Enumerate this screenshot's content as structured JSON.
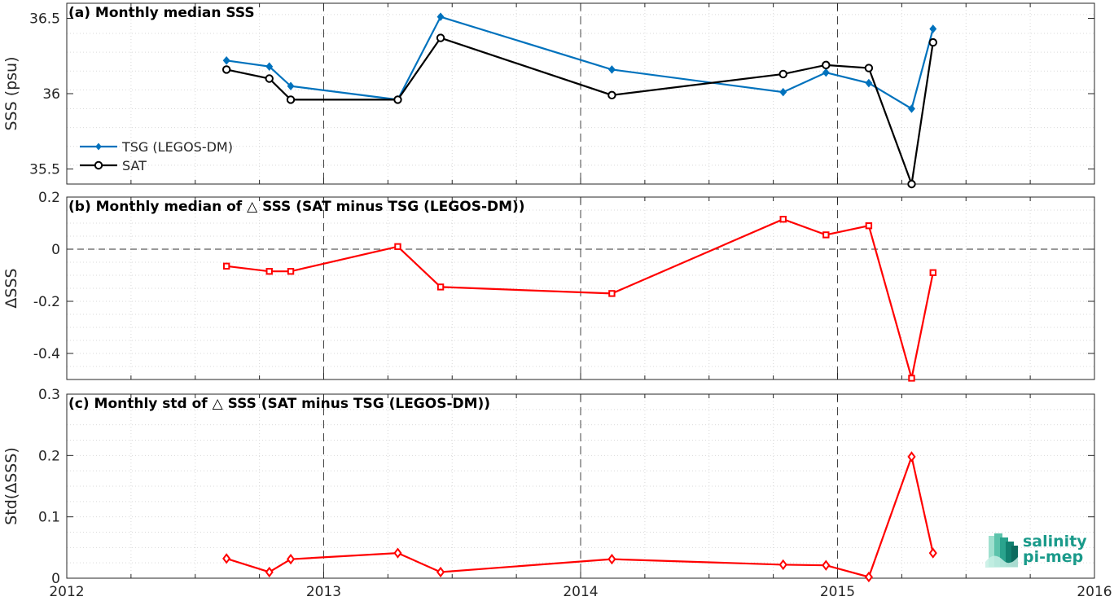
{
  "chart_data": [
    {
      "type": "line",
      "title": "(a) Monthly median SSS",
      "ylabel": "SSS (psu)",
      "xlim": [
        "2012",
        "2016"
      ],
      "ylim": [
        35.4,
        36.6
      ],
      "yticks": [
        35.5,
        36,
        36.5
      ],
      "ytick_labels": [
        "35.5",
        "36",
        "36.5"
      ],
      "grid": true,
      "legend_placement": "lower-left",
      "x": [
        "2012-08-15",
        "2012-10-15",
        "2012-11-15",
        "2013-04-15",
        "2013-06-15",
        "2014-02-15",
        "2014-10-15",
        "2014-12-15",
        "2015-02-15",
        "2015-04-15",
        "2015-05-15"
      ],
      "series": [
        {
          "name": "TSG (LEGOS-DM)",
          "color": "#0072bd",
          "marker": "diamond",
          "values": [
            36.22,
            36.18,
            36.05,
            35.96,
            36.51,
            36.16,
            36.01,
            36.14,
            36.07,
            35.9,
            36.43
          ]
        },
        {
          "name": "SAT",
          "color": "#000000",
          "marker": "circle",
          "values": [
            36.16,
            36.1,
            35.96,
            35.96,
            36.37,
            35.99,
            36.13,
            36.19,
            36.17,
            35.4,
            36.34
          ]
        }
      ]
    },
    {
      "type": "line",
      "title": "(b) Monthly median of △ SSS (SAT minus TSG (LEGOS-DM))",
      "ylabel": "ΔSSS",
      "xlim": [
        "2012",
        "2016"
      ],
      "ylim": [
        -0.5,
        0.2
      ],
      "yticks": [
        -0.4,
        -0.2,
        0,
        0.2
      ],
      "ytick_labels": [
        "-0.4",
        "-0.2",
        "0",
        "0.2"
      ],
      "grid": true,
      "zero_line": true,
      "x": [
        "2012-08-15",
        "2012-10-15",
        "2012-11-15",
        "2013-04-15",
        "2013-06-15",
        "2014-02-15",
        "2014-10-15",
        "2014-12-15",
        "2015-02-15",
        "2015-04-15",
        "2015-05-15"
      ],
      "series": [
        {
          "color": "#ff0000",
          "marker": "square",
          "values": [
            -0.065,
            -0.085,
            -0.085,
            0.01,
            -0.145,
            -0.17,
            0.115,
            0.055,
            0.09,
            -0.495,
            -0.09
          ]
        }
      ]
    },
    {
      "type": "line",
      "title": "(c) Monthly std of △ SSS (SAT minus TSG (LEGOS-DM))",
      "ylabel": "Std(ΔSSS)",
      "xlim": [
        "2012",
        "2016"
      ],
      "ylim": [
        0,
        0.3
      ],
      "yticks": [
        0,
        0.1,
        0.2,
        0.3
      ],
      "ytick_labels": [
        "0",
        "0.1",
        "0.2",
        "0.3"
      ],
      "xticks": [
        "2012",
        "2013",
        "2014",
        "2015",
        "2016"
      ],
      "grid": true,
      "x": [
        "2012-08-15",
        "2012-10-15",
        "2012-11-15",
        "2013-04-15",
        "2013-06-15",
        "2014-02-15",
        "2014-10-15",
        "2014-12-15",
        "2015-02-15",
        "2015-04-15",
        "2015-05-15"
      ],
      "series": [
        {
          "color": "#ff0000",
          "marker": "diamond-open",
          "values": [
            0.032,
            0.01,
            0.031,
            0.041,
            0.01,
            0.031,
            0.022,
            0.021,
            0.002,
            0.198,
            0.041
          ]
        }
      ]
    }
  ],
  "logo": {
    "line1": "salinity",
    "line2": "pi-mep"
  }
}
